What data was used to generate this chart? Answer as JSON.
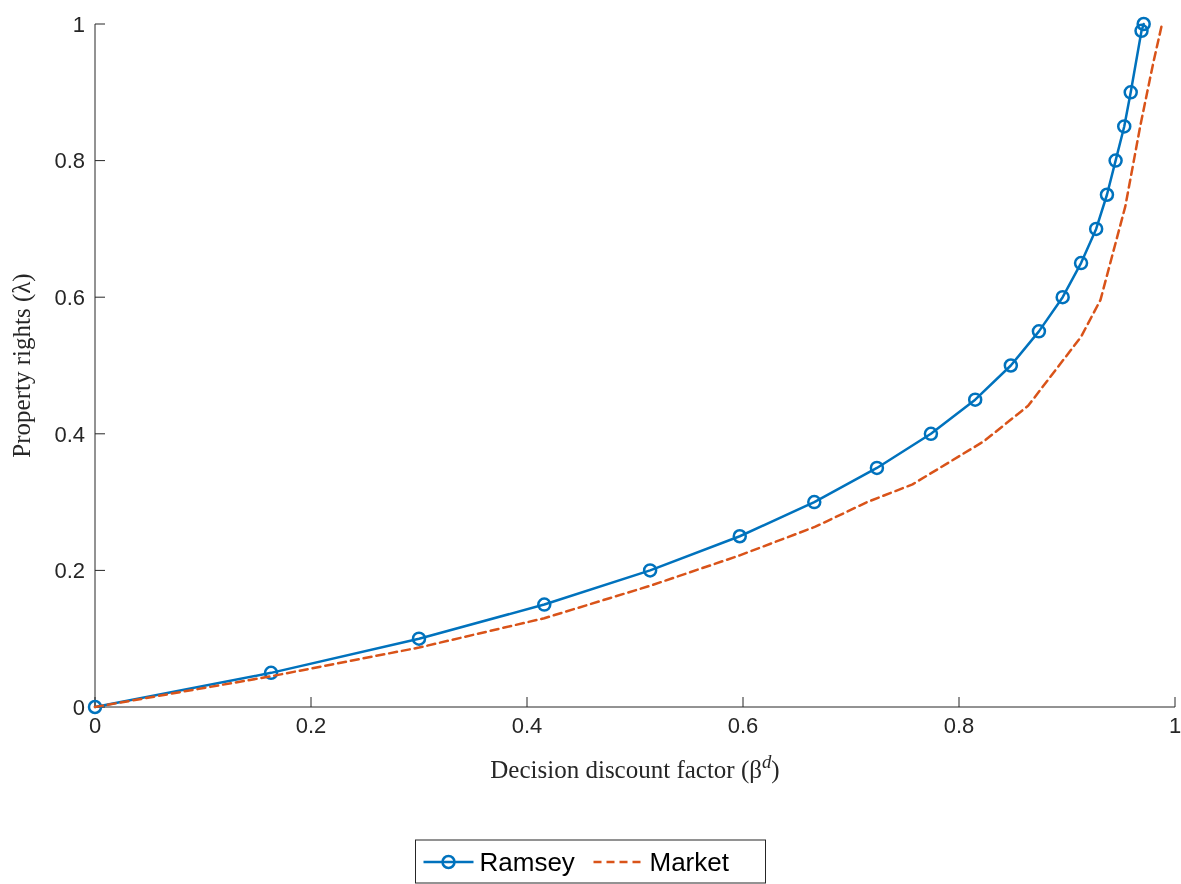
{
  "chart_data": {
    "type": "line",
    "xlabel": "Decision discount factor (β$^{d}$)",
    "ylabel": "Property rights (λ)",
    "xlim": [
      0,
      1
    ],
    "ylim": [
      0,
      1
    ],
    "xticks": [
      0,
      0.2,
      0.4,
      0.6,
      0.8,
      1
    ],
    "yticks": [
      0,
      0.2,
      0.4,
      0.6,
      0.8,
      1
    ],
    "grid": false,
    "legend": "bottom",
    "series": [
      {
        "name": "Ramsey",
        "color": "#0072bd",
        "marker": "circle",
        "line_style": "solid",
        "x": [
          0,
          0.163,
          0.3,
          0.416,
          0.514,
          0.597,
          0.666,
          0.724,
          0.774,
          0.815,
          0.848,
          0.874,
          0.896,
          0.913,
          0.927,
          0.937,
          0.945,
          0.953,
          0.959,
          0.969,
          0.971
        ],
        "values": [
          0,
          0.05,
          0.1,
          0.15,
          0.2,
          0.25,
          0.3,
          0.35,
          0.4,
          0.45,
          0.5,
          0.55,
          0.6,
          0.65,
          0.7,
          0.75,
          0.8,
          0.85,
          0.9,
          0.99,
          1
        ]
      },
      {
        "name": "Market",
        "color": "#d95319",
        "marker": "none",
        "line_style": "dashed",
        "x": [
          0,
          0.163,
          0.3,
          0.416,
          0.515,
          0.597,
          0.667,
          0.715,
          0.757,
          0.823,
          0.864,
          0.913,
          0.931,
          0.954,
          0.968,
          0.98,
          0.988
        ],
        "values": [
          0,
          0.045,
          0.087,
          0.13,
          0.178,
          0.222,
          0.264,
          0.3,
          0.326,
          0.389,
          0.441,
          0.542,
          0.596,
          0.733,
          0.852,
          0.944,
          1
        ]
      }
    ]
  }
}
